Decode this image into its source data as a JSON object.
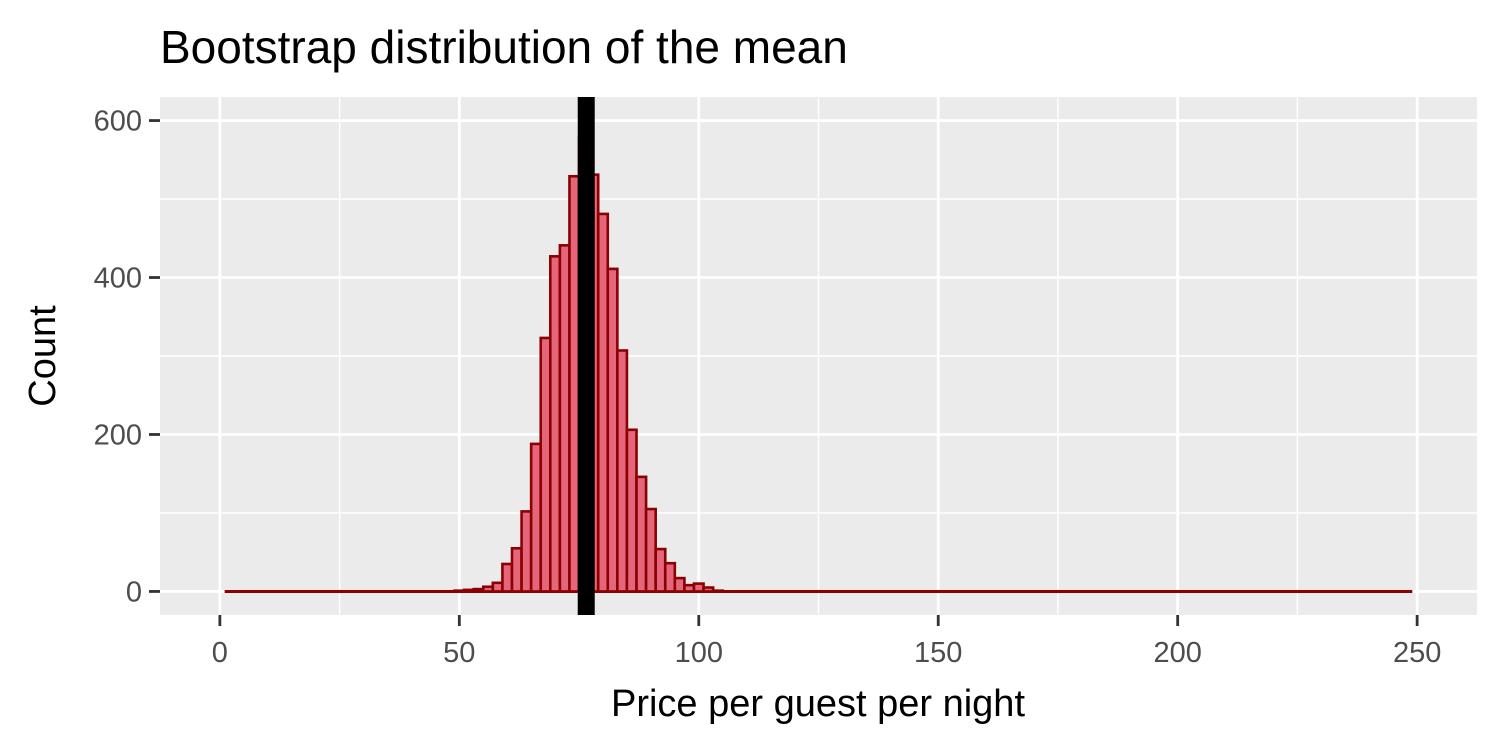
{
  "chart_data": {
    "type": "bar",
    "title": "Bootstrap distribution of the mean",
    "xlabel": "Price per guest per night",
    "ylabel": "Count",
    "xlim": [
      -12.5,
      262.5
    ],
    "ylim": [
      -30,
      630
    ],
    "x_ticks": [
      0,
      50,
      100,
      150,
      200,
      250
    ],
    "y_ticks": [
      0,
      200,
      400,
      600
    ],
    "grid": true,
    "bin_width": 2,
    "x_start": 1,
    "x_end": 249,
    "bins": [
      {
        "x0": 49,
        "x1": 51,
        "count": 1
      },
      {
        "x0": 51,
        "x1": 53,
        "count": 2
      },
      {
        "x0": 53,
        "x1": 55,
        "count": 3
      },
      {
        "x0": 55,
        "x1": 57,
        "count": 6
      },
      {
        "x0": 57,
        "x1": 59,
        "count": 11
      },
      {
        "x0": 59,
        "x1": 61,
        "count": 35
      },
      {
        "x0": 61,
        "x1": 63,
        "count": 55
      },
      {
        "x0": 63,
        "x1": 65,
        "count": 102
      },
      {
        "x0": 65,
        "x1": 67,
        "count": 188
      },
      {
        "x0": 67,
        "x1": 69,
        "count": 323
      },
      {
        "x0": 69,
        "x1": 71,
        "count": 427
      },
      {
        "x0": 71,
        "x1": 73,
        "count": 441
      },
      {
        "x0": 73,
        "x1": 75,
        "count": 529
      },
      {
        "x0": 75,
        "x1": 77,
        "count": 579
      },
      {
        "x0": 77,
        "x1": 79,
        "count": 531
      },
      {
        "x0": 79,
        "x1": 81,
        "count": 481
      },
      {
        "x0": 81,
        "x1": 83,
        "count": 411
      },
      {
        "x0": 83,
        "x1": 85,
        "count": 307
      },
      {
        "x0": 85,
        "x1": 87,
        "count": 206
      },
      {
        "x0": 87,
        "x1": 89,
        "count": 146
      },
      {
        "x0": 89,
        "x1": 91,
        "count": 105
      },
      {
        "x0": 91,
        "x1": 93,
        "count": 54
      },
      {
        "x0": 93,
        "x1": 95,
        "count": 36
      },
      {
        "x0": 95,
        "x1": 97,
        "count": 17
      },
      {
        "x0": 97,
        "x1": 99,
        "count": 8
      },
      {
        "x0": 99,
        "x1": 101,
        "count": 10
      },
      {
        "x0": 101,
        "x1": 103,
        "count": 5
      },
      {
        "x0": 103,
        "x1": 105,
        "count": 1
      }
    ],
    "mean_line_x": 76.5,
    "colors": {
      "bar_fill": "#e5667a",
      "bar_outline": "#8b0000",
      "mean_line": "#000000",
      "panel_background": "#ebebeb",
      "grid": "#ffffff",
      "tick_label": "#4d4d4d"
    }
  }
}
